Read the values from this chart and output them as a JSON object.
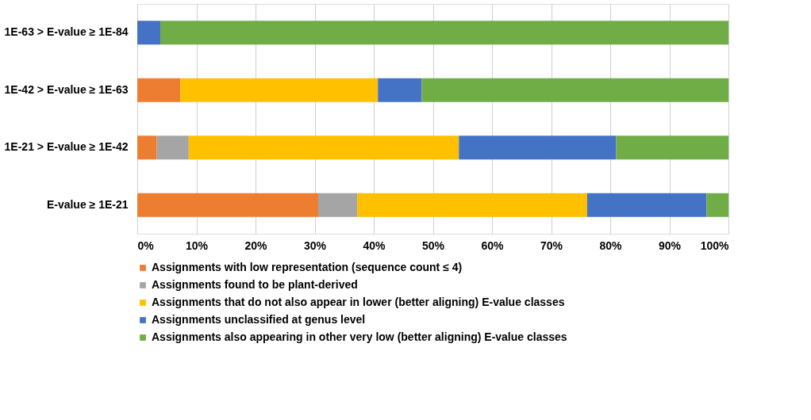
{
  "chart_data": {
    "type": "bar",
    "orientation": "horizontal",
    "stacked": true,
    "categories": [
      "1E-63 > E-value ≥ 1E-84",
      "1E-42 > E-value ≥ 1E-63",
      "1E-21 > E-value ≥ 1E-42",
      "E-value ≥ 1E-21"
    ],
    "series": [
      {
        "name": "Assignments with low representation (sequence count ≤ 4)",
        "color": "#ed7d31",
        "values": [
          0,
          7.3,
          3.3,
          30.6
        ]
      },
      {
        "name": "Assignments found to be plant-derived",
        "color": "#a5a5a5",
        "values": [
          0,
          0,
          5.4,
          6.6
        ]
      },
      {
        "name": "Assignments that do not also appear in lower (better aligning) E-value classes",
        "color": "#ffc000",
        "values": [
          0,
          33.4,
          45.7,
          38.9
        ]
      },
      {
        "name": "Assignments unclassified at genus level",
        "color": "#4472c4",
        "values": [
          3.9,
          7.4,
          26.6,
          20.2
        ]
      },
      {
        "name": "Assignments also appearing in other very low (better aligning) E-value classes",
        "color": "#70ad47",
        "values": [
          96.1,
          51.9,
          19.0,
          3.7
        ]
      }
    ],
    "xlim": [
      0,
      100
    ],
    "xticks": [
      {
        "value": 0,
        "label": "0%"
      },
      {
        "value": 10,
        "label": "10%"
      },
      {
        "value": 20,
        "label": "20%"
      },
      {
        "value": 30,
        "label": "30%"
      },
      {
        "value": 40,
        "label": "40%"
      },
      {
        "value": 50,
        "label": "50%"
      },
      {
        "value": 60,
        "label": "60%"
      },
      {
        "value": 70,
        "label": "70%"
      },
      {
        "value": 80,
        "label": "80%"
      },
      {
        "value": 90,
        "label": "90%"
      },
      {
        "value": 100,
        "label": "100%"
      }
    ],
    "grid": "x",
    "legend": "bottom"
  }
}
